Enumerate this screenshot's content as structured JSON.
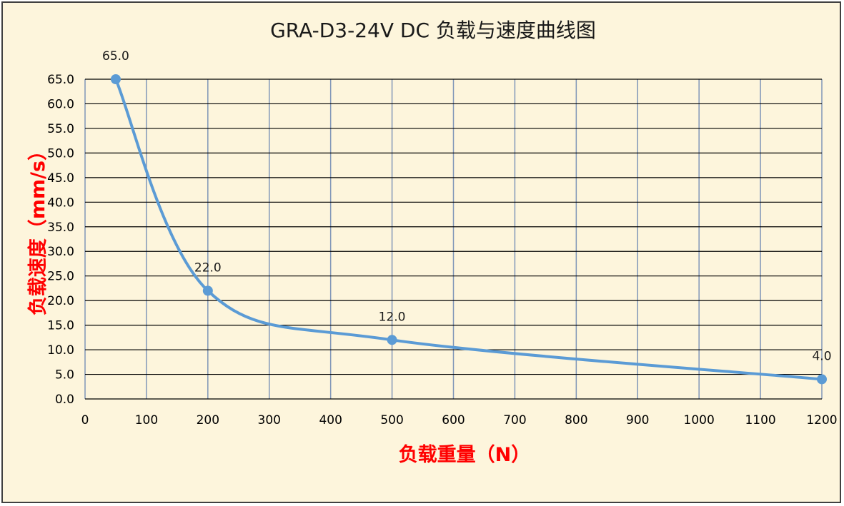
{
  "chart_data": {
    "type": "line",
    "title": "GRA-D3-24V DC 负载与速度曲线图",
    "xlabel": "负载重量（N）",
    "ylabel": "负载速度（mm/s）",
    "xlim": [
      0,
      1200
    ],
    "ylim": [
      0,
      65
    ],
    "x_ticks": [
      "0",
      "100",
      "200",
      "300",
      "400",
      "500",
      "600",
      "700",
      "800",
      "900",
      "1000",
      "1100",
      "1200"
    ],
    "y_ticks": [
      "0.0",
      "5.0",
      "10.0",
      "15.0",
      "20.0",
      "25.0",
      "30.0",
      "35.0",
      "40.0",
      "45.0",
      "50.0",
      "55.0",
      "60.0",
      "65.0"
    ],
    "grid": true,
    "smooth": true,
    "series": [
      {
        "x": [
          50,
          200,
          500,
          1200
        ],
        "y": [
          65.0,
          22.0,
          12.0,
          4.0
        ],
        "data_labels": [
          "65.0",
          "22.0",
          "12.0",
          "4.0"
        ]
      }
    ],
    "colors": {
      "line": "#5b9bd5",
      "grid": "#8096b8",
      "axis_title": "#ff0000",
      "background": "#fdf5dc"
    }
  }
}
